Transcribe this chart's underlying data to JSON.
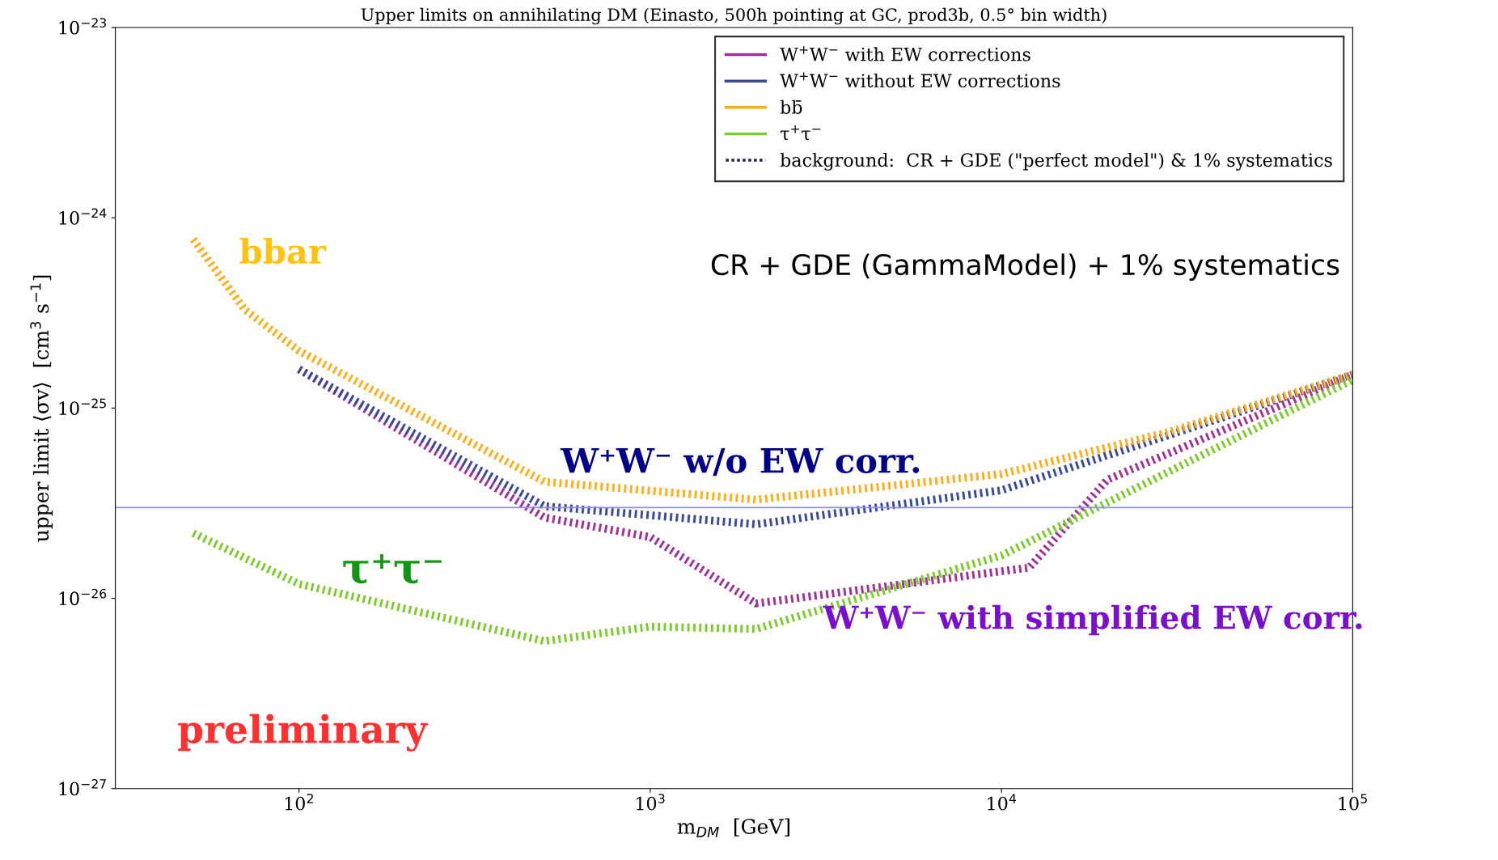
{
  "chart_data": {
    "type": "line",
    "title": "Upper limits on annihilating DM (Einasto, 500h pointing at GC, prod3b, 0.5° bin width)",
    "xlabel": "m$_{DM}$  [GeV]",
    "ylabel": "upper limit ⟨σv⟩  [cm$^{3}$ s$^{−1}$]",
    "log": "xy",
    "xlim": [
      30,
      100000
    ],
    "ylim": [
      1e-27,
      1e-23
    ],
    "xticks": [
      {
        "value": 100,
        "label": "10$^{2}$"
      },
      {
        "value": 1000,
        "label": "10$^{3}$"
      },
      {
        "value": 10000,
        "label": "10$^{4}$"
      },
      {
        "value": 100000,
        "label": "10$^{5}$"
      }
    ],
    "yticks": [
      {
        "value": 1e-27,
        "label": "10$^{−27}$"
      },
      {
        "value": 1e-26,
        "label": "10$^{−26}$"
      },
      {
        "value": 1e-25,
        "label": "10$^{−25}$"
      },
      {
        "value": 1e-24,
        "label": "10$^{−24}$"
      },
      {
        "value": 1e-23,
        "label": "10$^{−23}$"
      }
    ],
    "grid": false,
    "legend": "top right",
    "line_style": "dotted",
    "marker": "none",
    "series": [
      {
        "name": "W$^{+}$W$^{−}$ with EW corrections",
        "color": "#a0309c",
        "x": [
          100,
          500,
          1000,
          2000,
          12000,
          20000,
          100000
        ],
        "values": [
          1.6e-25,
          2.66e-26,
          2.1e-26,
          9.4e-27,
          1.45e-26,
          4.2e-26,
          1.5e-25
        ]
      },
      {
        "name": "W$^{+}$W$^{−}$ without EW corrections",
        "color": "#3a4a9a",
        "x": [
          100,
          500,
          2000,
          10000,
          100000
        ],
        "values": [
          1.6e-25,
          3.05e-26,
          2.45e-26,
          3.7e-26,
          1.5e-25
        ]
      },
      {
        "name": "bb̄",
        "color": "#ffae1a",
        "x": [
          50,
          70,
          100,
          500,
          2000,
          10000,
          30000,
          100000
        ],
        "values": [
          7.7e-25,
          3.3e-25,
          2e-25,
          4.1e-26,
          3.3e-26,
          4.5e-26,
          7.5e-26,
          1.5e-25
        ]
      },
      {
        "name": "τ$^{+}$τ$^{−}$",
        "color": "#7ccc2a",
        "x": [
          50,
          100,
          500,
          1000,
          2000,
          10000,
          100000
        ],
        "values": [
          2.2e-26,
          1.19e-26,
          5.96e-27,
          7.1e-27,
          6.9e-27,
          1.68e-26,
          1.41e-25
        ]
      },
      {
        "name": "background:  CR + GDE (\"perfect model\") & 1% systematics",
        "color": "#1a1a4a"
      }
    ],
    "ref_lines": [
      {
        "axis": "y",
        "value": 3e-26,
        "color": "#8c8cff"
      }
    ],
    "annotations": [
      "bbar",
      "W⁺W⁻ w/o EW corr.",
      "τ⁺τ⁻",
      "W⁺W⁻ with simplified EW corr.",
      "preliminary",
      "CR + GDE (GammaModel) + 1% systematics"
    ]
  }
}
